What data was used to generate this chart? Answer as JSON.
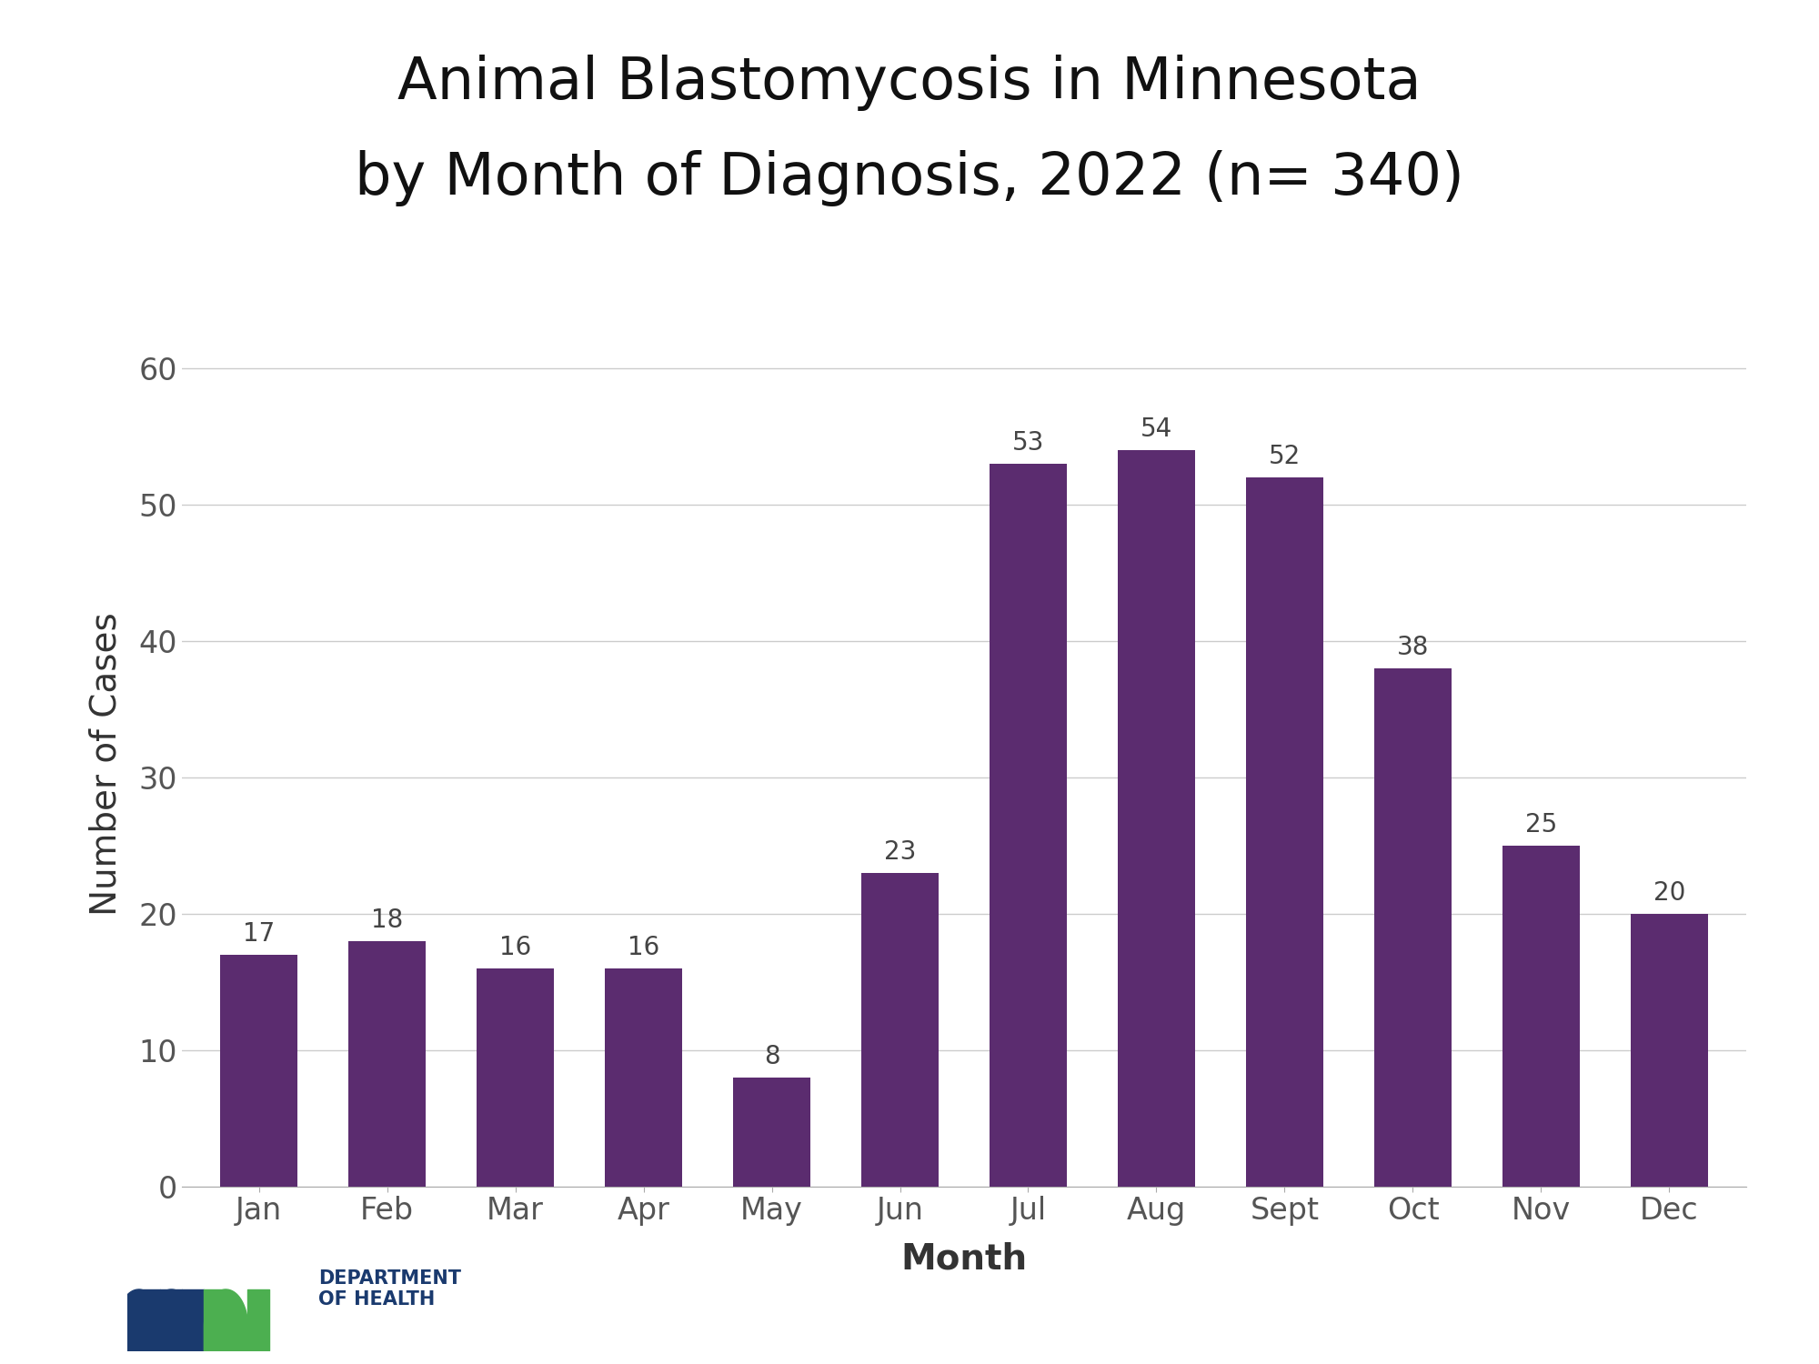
{
  "title_line1": "Animal Blastomycosis in Minnesota",
  "title_line2": "by Month of Diagnosis, 2022 (n= 340)",
  "months": [
    "Jan",
    "Feb",
    "Mar",
    "Apr",
    "May",
    "Jun",
    "Jul",
    "Aug",
    "Sept",
    "Oct",
    "Nov",
    "Dec"
  ],
  "values": [
    17,
    18,
    16,
    16,
    8,
    23,
    53,
    54,
    52,
    38,
    25,
    20
  ],
  "bar_color": "#5b2c6f",
  "xlabel": "Month",
  "ylabel": "Number of Cases",
  "ylim": [
    0,
    62
  ],
  "yticks": [
    0,
    10,
    20,
    30,
    40,
    50,
    60
  ],
  "title_fontsize": 46,
  "axis_label_fontsize": 28,
  "tick_fontsize": 24,
  "value_label_fontsize": 20,
  "background_color": "#ffffff",
  "grid_color": "#cccccc",
  "tick_color": "#555555",
  "logo_color": "#1a3a6e",
  "logo_green": "#4caf50"
}
